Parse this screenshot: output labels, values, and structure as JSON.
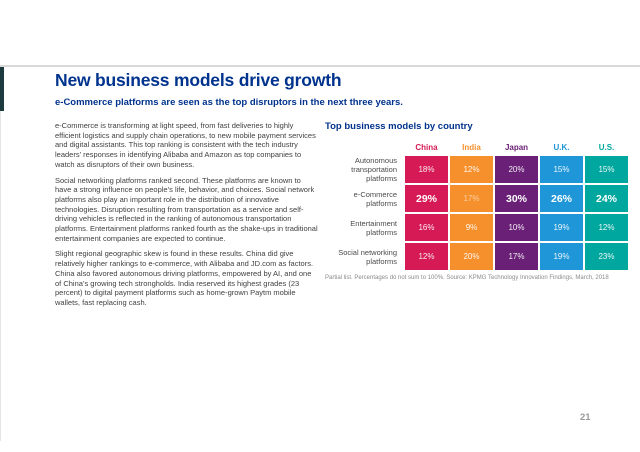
{
  "page": {
    "number": "21"
  },
  "slide": {
    "title": "New business models drive growth",
    "subtitle": "e-Commerce platforms are seen as the top disruptors in the next three years.",
    "paragraphs": [
      "e-Commerce is transforming at light speed, from fast deliveries to highly efficient logistics and supply chain operations, to new mobile payment services and digital assistants. This top ranking is consistent with the tech industry leaders’ responses in identifying Alibaba and Amazon as top companies to watch as disruptors of their own business.",
      "Social networking platforms ranked second. These platforms are known to have a strong influence on people’s life, behavior, and choices. Social network platforms also play an important role in the distribution of innovative technologies. Disruption resulting from transportation as a service and self-driving vehicles is reflected in the ranking of autonomous transportation platforms. Entertainment platforms ranked fourth as the shake-ups in traditional entertainment companies are expected to continue.",
      "Slight regional geographic skew is found in these results. China did give relatively higher rankings to e-commerce, with Alibaba and JD.com as factors. China also favored autonomous driving platforms, empowered by AI, and one of China’s growing tech strongholds. India reserved its highest grades (23 percent) to digital payment platforms such as home-grown Paytm mobile wallets, fast replacing cash."
    ]
  },
  "chart": {
    "title": "Top business models by country",
    "columns": [
      {
        "label": "China",
        "color": "#d61a55"
      },
      {
        "label": "India",
        "color": "#f6902d"
      },
      {
        "label": "Japan",
        "color": "#6b2077"
      },
      {
        "label": "U.K.",
        "color": "#1e96d7"
      },
      {
        "label": "U.S.",
        "color": "#00a79e"
      }
    ],
    "rows": [
      {
        "label": "Autonomous transportation platforms",
        "values": [
          "18%",
          "12%",
          "20%",
          "15%",
          "15%"
        ]
      },
      {
        "label": "e-Commerce platforms",
        "values": [
          "29%",
          "17%",
          "30%",
          "26%",
          "24%"
        ]
      },
      {
        "label": "Entertainment platforms",
        "values": [
          "16%",
          "9%",
          "10%",
          "19%",
          "12%"
        ]
      },
      {
        "label": "Social networking platforms",
        "values": [
          "12%",
          "20%",
          "17%",
          "19%",
          "23%"
        ]
      }
    ],
    "footnote": "Partial list. Percentages do not sum to 100%. Source: KPMG Technology Innovation Findings, March, 2018"
  },
  "chart_data": {
    "type": "heatmap",
    "title": "Top business models by country",
    "columns": [
      "China",
      "India",
      "Japan",
      "U.K.",
      "U.S."
    ],
    "rows": [
      "Autonomous transportation platforms",
      "e-Commerce platforms",
      "Entertainment platforms",
      "Social networking platforms"
    ],
    "values_percent": [
      [
        18,
        12,
        20,
        15,
        15
      ],
      [
        29,
        17,
        30,
        26,
        24
      ],
      [
        16,
        9,
        10,
        19,
        12
      ],
      [
        12,
        20,
        17,
        19,
        23
      ]
    ],
    "column_colors": [
      "#d61a55",
      "#f6902d",
      "#6b2077",
      "#1e96d7",
      "#00a79e"
    ],
    "highlighted_row": "e-Commerce platforms"
  },
  "colors": {
    "brand_blue": "#00338d",
    "body_text": "#3f3f3f"
  }
}
